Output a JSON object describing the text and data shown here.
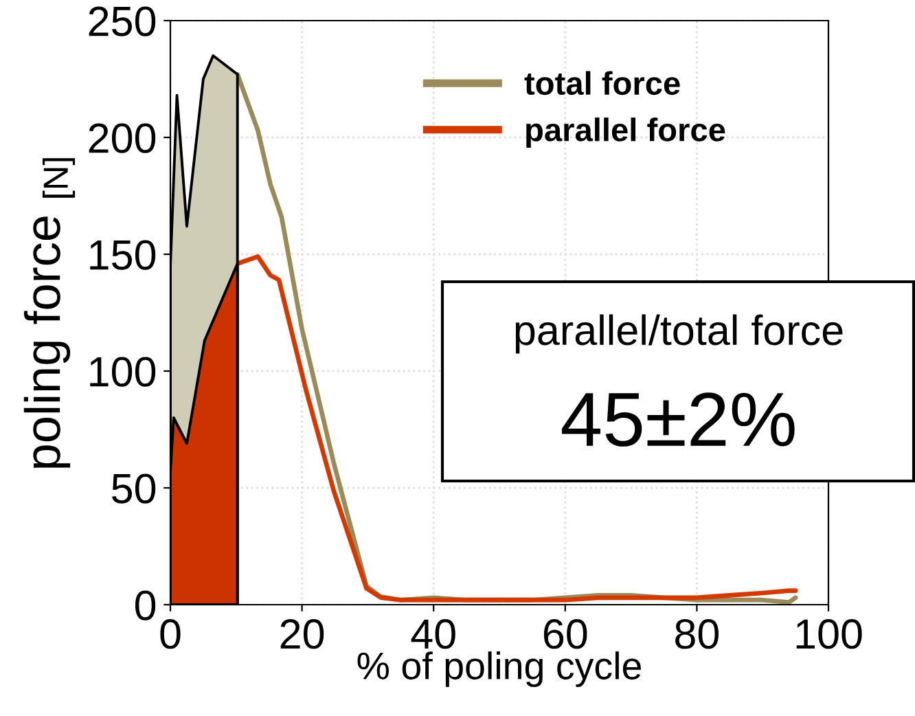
{
  "chart_data": {
    "type": "line",
    "xlabel": "% of poling cycle",
    "ylabel": "poling force $_{[N]}$",
    "xlim": [
      0,
      100
    ],
    "ylim": [
      0,
      250
    ],
    "xticks": [
      0,
      20,
      40,
      60,
      80,
      100
    ],
    "yticks": [
      0,
      50,
      100,
      150,
      200,
      250
    ],
    "grid": true,
    "legend": "top right",
    "series": [
      {
        "type": "area",
        "color": "#cfcdb6",
        "x": [
          0,
          1,
          2.5,
          5,
          6.5,
          10.2
        ],
        "values": [
          145,
          218,
          162,
          225,
          235,
          227
        ]
      },
      {
        "type": "area",
        "color": "#cc3300",
        "x": [
          0,
          0.5,
          2.5,
          5.2,
          10.2
        ],
        "values": [
          57,
          80,
          69,
          113,
          146
        ]
      },
      {
        "name": "total force",
        "color": "#9b8a5a",
        "x": [
          10.2,
          13.3,
          15.2,
          16.9,
          20,
          24.8,
          29.8,
          31.9,
          35,
          40,
          45,
          50,
          55,
          60,
          65,
          70,
          75,
          80,
          85,
          90,
          94,
          95
        ],
        "values": [
          227,
          203,
          180,
          166,
          118,
          61,
          8,
          3.5,
          2,
          3,
          2,
          2,
          2,
          3,
          4,
          4,
          3,
          2,
          2,
          2,
          1,
          3
        ]
      },
      {
        "name": "parallel force",
        "color": "#d43a00",
        "x": [
          10.2,
          13.3,
          15.2,
          16.5,
          20.6,
          24.8,
          29.8,
          32,
          35,
          40,
          45,
          50,
          55,
          60,
          65,
          70,
          75,
          80,
          85,
          90,
          94,
          95
        ],
        "values": [
          146,
          149,
          141,
          139,
          92,
          49,
          7,
          3,
          2,
          2,
          2,
          2,
          2,
          2,
          3,
          3,
          3,
          3,
          4,
          5,
          6,
          6
        ]
      }
    ],
    "annotations": [
      "parallel/total force",
      "45±2%"
    ]
  }
}
